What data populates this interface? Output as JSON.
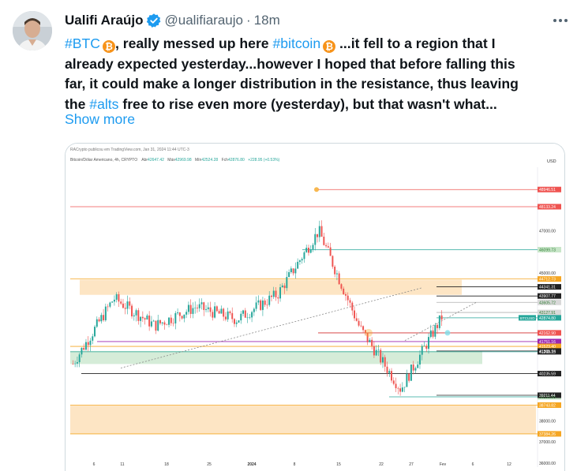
{
  "tweet": {
    "author_name": "Ualifi Araújo",
    "handle": "@ualifiaraujo",
    "separator": "·",
    "time": "18m",
    "line1": {
      "tag1": "#BTC",
      "text1": ", really messed up here ",
      "tag2": "#bitcoin",
      "text2": "...it fell to a region that I"
    },
    "line2": "already expected yesterday...however I hoped that before falling this",
    "line3": "far, it could make a longer distribution in the resistance, thus leaving",
    "line4": {
      "text1": "the ",
      "tag": "#alts",
      "text2": " free to rise even more (yesterday), but that wasn't what..."
    },
    "show_more": "Show more",
    "emoji_btc": "₿"
  },
  "icons": {
    "verified": "verified-badge-icon",
    "more": "more-options-icon",
    "btc": "bitcoin-emoji-icon"
  },
  "colors": {
    "accent": "#1d9bf0",
    "bull": "#26a69a",
    "bear": "#ef5350",
    "resistance_zone": "#fde5c4",
    "support_zone": "#d5ecd8"
  },
  "chart": {
    "header_line": "RACrypto publicou em TradingView.com, Jan 31, 2024 11:44 UTC-3",
    "symbol_line": "Bitcoin/Dólar Americano, 4h, CRYPTO",
    "ohlc": {
      "open_label": "Abr",
      "open": "42647.42",
      "high_label": "Máx",
      "high": "42969.98",
      "low_label": "Mín",
      "low": "42524.28",
      "close_label": "Fch",
      "close": "42876.80",
      "change": "+228.95 (+0.53%)"
    },
    "currency": "USD",
    "symbol_tag": "BTCUSD",
    "price_labels": [
      "48946.51",
      "48133.24",
      "47000.00",
      "46099.73",
      "45000.00",
      "44712.73",
      "44341.31",
      "43907.77",
      "43605.72",
      "43127.91",
      "42874.80",
      "42162.90",
      "41751.16",
      "41523.40",
      "41305.74",
      "41268.33",
      "40235.59",
      "39135.98",
      "39211.44",
      "38743.82",
      "38000.00",
      "37384.26",
      "37000.00",
      "36000.00"
    ],
    "x_labels": [
      "6",
      "11",
      "18",
      "25",
      "2024",
      "8",
      "15",
      "22",
      "27",
      "Fev",
      "6",
      "12"
    ]
  },
  "chart_data": {
    "type": "line",
    "title": "Bitcoin/Dólar Americano, 4h, CRYPTO",
    "xlabel": "",
    "ylabel": "USD",
    "ylim": [
      36000,
      50000
    ],
    "x": [
      "6",
      "11",
      "18",
      "25",
      "2024",
      "8",
      "15",
      "22",
      "27",
      "Fev"
    ],
    "series": [
      {
        "name": "BTCUSD",
        "values": [
          40700,
          43800,
          42500,
          43400,
          42800,
          44000,
          47000,
          42400,
          39500,
          42900
        ]
      }
    ],
    "levels": [
      48946.51,
      48133.24,
      46099.73,
      44712.73,
      44341.31,
      43907.77,
      43605.72,
      42162.9,
      41751.16,
      41523.4,
      41305.74,
      41268.33,
      40235.59,
      39135.98,
      39211.44,
      38743.82,
      37384.26
    ]
  }
}
